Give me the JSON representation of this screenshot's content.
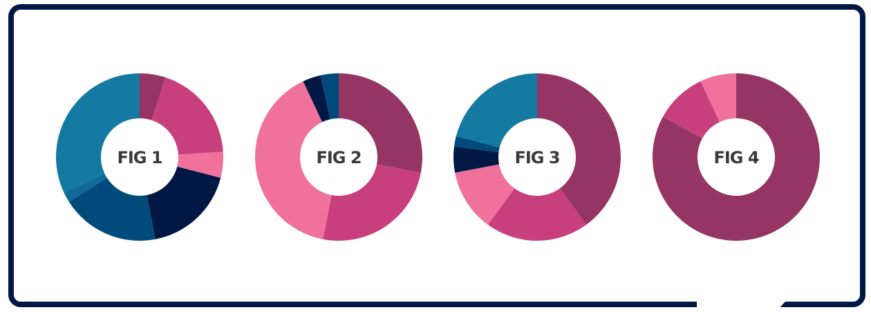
{
  "chart_data": [
    {
      "type": "donut",
      "title": "FIG 1",
      "values": [
        5,
        19,
        5,
        18,
        19,
        2,
        32
      ],
      "colors": [
        "#943564",
        "#c83f7e",
        "#f0729c",
        "#001843",
        "#004b7c",
        "#0f6a97",
        "#157aa2"
      ]
    },
    {
      "type": "donut",
      "title": "FIG 2",
      "values": [
        28,
        25,
        40,
        3.5,
        3.5
      ],
      "colors": [
        "#943564",
        "#c83f7e",
        "#f0729c",
        "#001843",
        "#004b7c"
      ]
    },
    {
      "type": "donut",
      "title": "FIG 3",
      "values": [
        40,
        20,
        12,
        5,
        2,
        21
      ],
      "colors": [
        "#943564",
        "#c83f7e",
        "#f0729c",
        "#001843",
        "#004b7c",
        "#157aa2"
      ]
    },
    {
      "type": "donut",
      "title": "FIG 4",
      "values": [
        83,
        10,
        7
      ],
      "colors": [
        "#943564",
        "#c83f7e",
        "#f0729c"
      ]
    }
  ]
}
